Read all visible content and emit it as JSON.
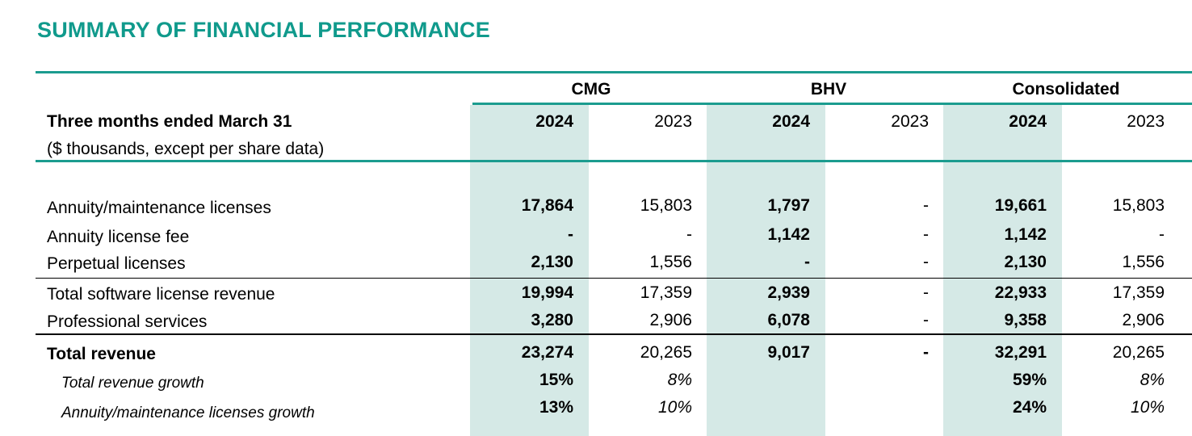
{
  "title": "SUMMARY OF FINANCIAL PERFORMANCE",
  "groups": [
    "CMG",
    "BHV",
    "Consolidated"
  ],
  "years": [
    "2024",
    "2023",
    "2024",
    "2023",
    "2024",
    "2023"
  ],
  "period_label": "Three months ended March 31",
  "units_note": "($ thousands, except per share data)",
  "rows": [
    {
      "label": "Annuity/maintenance licenses",
      "values": [
        "17,864",
        "15,803",
        "1,797",
        "-",
        "19,661",
        "15,803"
      ]
    },
    {
      "label": "Annuity license fee",
      "values": [
        "-",
        "-",
        "1,142",
        "-",
        "1,142",
        "-"
      ]
    },
    {
      "label": "Perpetual licenses",
      "values": [
        "2,130",
        "1,556",
        "-",
        "-",
        "2,130",
        "1,556"
      ]
    },
    {
      "label": "Total software license revenue",
      "values": [
        "19,994",
        "17,359",
        "2,939",
        "-",
        "22,933",
        "17,359"
      ]
    },
    {
      "label": "Professional services",
      "values": [
        "3,280",
        "2,906",
        "6,078",
        "-",
        "9,358",
        "2,906"
      ]
    },
    {
      "label": "Total revenue",
      "values": [
        "23,274",
        "20,265",
        "9,017",
        "-",
        "32,291",
        "20,265"
      ]
    },
    {
      "label": "Total revenue growth",
      "values": [
        "15%",
        "8%",
        "",
        "",
        "59%",
        "8%"
      ]
    },
    {
      "label": "Annuity/maintenance licenses growth",
      "values": [
        "13%",
        "10%",
        "",
        "",
        "24%",
        "10%"
      ]
    }
  ]
}
